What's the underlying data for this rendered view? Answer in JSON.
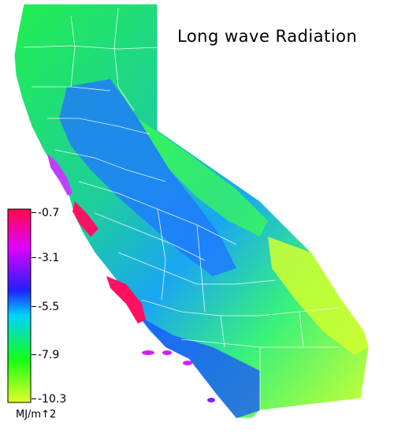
{
  "title": "Long wave Radiation",
  "legend": {
    "ticks": [
      "-0.7",
      "-3.1",
      "-5.5",
      "-7.9",
      "-10.3"
    ],
    "unit": "MJ/m↑2",
    "colors": [
      "#ff0a4a",
      "#e000ff",
      "#2020ff",
      "#00d2ff",
      "#14ff14",
      "#e6ff28"
    ]
  },
  "map_colors": {
    "north": "#22ee50",
    "central_valley": "#1e78ff",
    "sierra": "#3cff4a",
    "coast": "#ff1060",
    "desert": "#d0ff30",
    "boundary": "#ffffff"
  }
}
